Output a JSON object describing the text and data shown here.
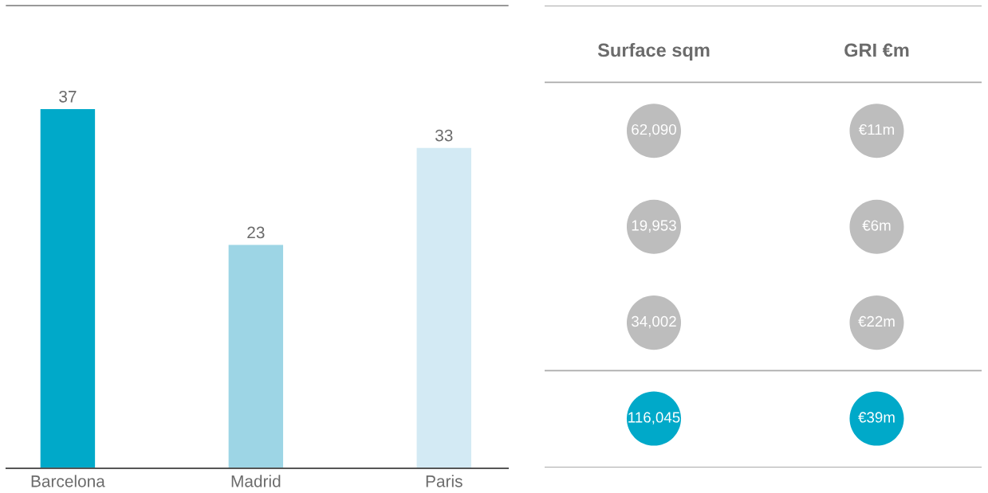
{
  "chart_data": [
    {
      "type": "bar",
      "categories": [
        "Barcelona",
        "Madrid",
        "Paris"
      ],
      "values": [
        37,
        23,
        33
      ],
      "colors": [
        "#00a9c9",
        "#9dd5e5",
        "#d3eaf4"
      ],
      "data_labels": true
    },
    {
      "type": "other",
      "categories": [
        "Surface sqm",
        "GRI €m"
      ],
      "cell_labels": [
        [
          "62,090",
          "€11m"
        ],
        [
          "19,953",
          "€6m"
        ],
        [
          "34,002",
          "€22m"
        ],
        [
          "116,045",
          "€39m"
        ]
      ],
      "colors": [
        "#bdbdbd",
        "#bdbdbd",
        "#bdbdbd",
        "#00a9c9"
      ]
    }
  ]
}
